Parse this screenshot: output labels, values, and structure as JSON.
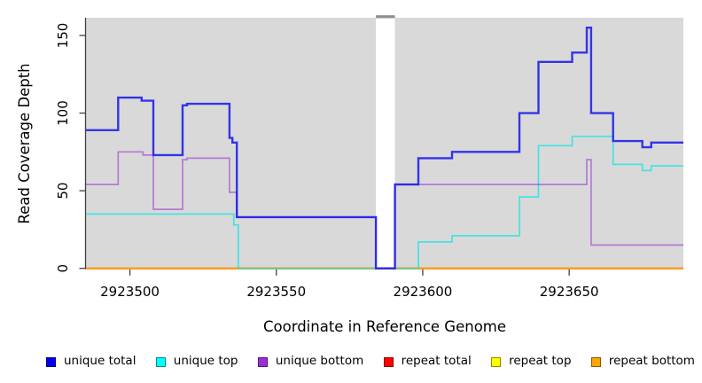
{
  "chart_data": {
    "type": "line",
    "line_style": "step",
    "title": "",
    "xlabel": "Coordinate in Reference Genome",
    "ylabel": "Read Coverage Depth",
    "xlim": [
      2923485,
      2923689
    ],
    "ylim": [
      0,
      161
    ],
    "x_ticks": [
      2923500,
      2923550,
      2923600,
      2923650
    ],
    "y_ticks": [
      0,
      50,
      100,
      150
    ],
    "grid": false,
    "legend_position": "bottom",
    "plot_bg_color": "#d9d9d9",
    "axis_color": "#404040",
    "gap_band": {
      "x_start": 2923584,
      "x_end": 2923590.5,
      "fill": "#ffffff",
      "top_marker_color": "#8e8e8e"
    },
    "series": [
      {
        "name": "repeat total",
        "color": "#ff0000",
        "opacity": 1,
        "line_width": 2,
        "visible_in_plot": false,
        "note": "constant 0, hidden beneath repeat bottom line",
        "step_points": [
          [
            2923485,
            0
          ]
        ]
      },
      {
        "name": "repeat top",
        "color": "#ffff00",
        "opacity": 1,
        "line_width": 2,
        "visible_in_plot": false,
        "note": "constant 0, hidden beneath repeat bottom line",
        "step_points": [
          [
            2923485,
            0
          ]
        ]
      },
      {
        "name": "repeat bottom",
        "color": "#ff9822",
        "opacity": 1,
        "line_width": 2.2,
        "visible_in_plot": true,
        "step_points": [
          [
            2923485,
            0
          ]
        ]
      },
      {
        "name": "unique top",
        "color": "#00e6e6",
        "opacity": 0.68,
        "line_width": 1.7,
        "visible_in_plot": true,
        "step_points": [
          [
            2923485,
            35
          ],
          [
            2923535.5,
            28
          ],
          [
            2923537,
            0
          ],
          [
            2923598.5,
            17
          ],
          [
            2923610,
            21
          ],
          [
            2923633,
            46
          ],
          [
            2923639.5,
            79
          ],
          [
            2923651,
            85
          ],
          [
            2923665,
            67
          ],
          [
            2923675,
            63
          ],
          [
            2923678,
            66
          ]
        ]
      },
      {
        "name": "unique bottom",
        "color": "#922ed0",
        "opacity": 0.55,
        "line_width": 1.7,
        "visible_in_plot": true,
        "step_points": [
          [
            2923485,
            54
          ],
          [
            2923496,
            75
          ],
          [
            2923504.5,
            73
          ],
          [
            2923508,
            38
          ],
          [
            2923518,
            70
          ],
          [
            2923519.5,
            71
          ],
          [
            2923534,
            49
          ],
          [
            2923536.5,
            33
          ],
          [
            2923584,
            0
          ],
          [
            2923590.5,
            54
          ],
          [
            2923656,
            70
          ],
          [
            2923657.5,
            15
          ]
        ]
      },
      {
        "name": "unique total",
        "color": "#1c1ce8",
        "opacity": 0.88,
        "line_width": 2.4,
        "visible_in_plot": true,
        "step_points": [
          [
            2923485,
            89
          ],
          [
            2923496,
            110
          ],
          [
            2923504,
            108
          ],
          [
            2923508,
            73
          ],
          [
            2923518,
            105
          ],
          [
            2923519.5,
            106
          ],
          [
            2923534,
            84
          ],
          [
            2923535,
            81
          ],
          [
            2923536.5,
            33
          ],
          [
            2923584,
            0
          ],
          [
            2923590.5,
            54
          ],
          [
            2923598.5,
            71
          ],
          [
            2923610,
            75
          ],
          [
            2923633,
            100
          ],
          [
            2923639.5,
            133
          ],
          [
            2923651,
            139
          ],
          [
            2923656,
            155
          ],
          [
            2923657.5,
            100
          ],
          [
            2923665,
            82
          ],
          [
            2923675,
            78
          ],
          [
            2923678,
            81
          ]
        ]
      }
    ]
  },
  "legend": {
    "items": [
      {
        "label": "unique total",
        "fill": "#0000ee",
        "border": "#000080"
      },
      {
        "label": "unique top",
        "fill": "#00ffff",
        "border": "#008b8b"
      },
      {
        "label": "unique bottom",
        "fill": "#9932cc",
        "border": "#5a0f8a"
      },
      {
        "label": "repeat total",
        "fill": "#ff0000",
        "border": "#8b0000"
      },
      {
        "label": "repeat top",
        "fill": "#ffff00",
        "border": "#8b8b00"
      },
      {
        "label": "repeat bottom",
        "fill": "#ffa500",
        "border": "#8b5a00"
      }
    ]
  }
}
